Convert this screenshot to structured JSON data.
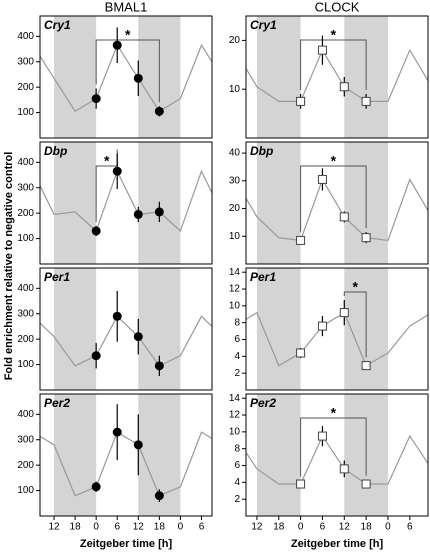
{
  "column_titles": [
    "BMAL1",
    "CLOCK"
  ],
  "y_label": "Fold enrichment relative to negative control",
  "x_labels": [
    "Zeitgeber time [h]",
    "Zeitgeber time [h]"
  ],
  "chart_data": [
    {
      "type": "line",
      "title": "Cry1",
      "column": 0,
      "row": 0,
      "xlim": [
        -16,
        33
      ],
      "ylim": [
        0,
        480
      ],
      "yticks": [
        100,
        200,
        300,
        400
      ],
      "shading": [
        [
          -12,
          0
        ],
        [
          12,
          24
        ]
      ],
      "line": {
        "color": "#999999",
        "x": [
          -18,
          -12,
          -6,
          0,
          6,
          12,
          18,
          24,
          30,
          36
        ],
        "values": [
          365,
          235,
          105,
          155,
          365,
          235,
          105,
          155,
          365,
          235
        ]
      },
      "points": {
        "marker": "circle",
        "x": [
          0,
          6,
          12,
          18
        ],
        "values": [
          155,
          365,
          235,
          105
        ],
        "errors": [
          40,
          70,
          70,
          20
        ]
      },
      "annotations": [
        {
          "text": "*",
          "x": [
            0,
            18
          ]
        }
      ]
    },
    {
      "type": "line",
      "title": "Dbp",
      "column": 0,
      "row": 1,
      "xlim": [
        -16,
        33
      ],
      "ylim": [
        0,
        480
      ],
      "yticks": [
        100,
        200,
        300,
        400
      ],
      "shading": [
        [
          -12,
          0
        ],
        [
          12,
          24
        ]
      ],
      "line": {
        "color": "#999999",
        "x": [
          -18,
          -12,
          -6,
          0,
          6,
          12,
          18,
          24,
          30,
          36
        ],
        "values": [
          365,
          195,
          205,
          130,
          365,
          195,
          205,
          130,
          365,
          195
        ]
      },
      "points": {
        "marker": "circle",
        "x": [
          0,
          6,
          12,
          18
        ],
        "values": [
          130,
          365,
          195,
          205
        ],
        "errors": [
          20,
          70,
          30,
          40
        ]
      },
      "annotations": [
        {
          "text": "*",
          "x": [
            0,
            6
          ]
        }
      ]
    },
    {
      "type": "line",
      "title": "Per1",
      "column": 0,
      "row": 2,
      "xlim": [
        -16,
        33
      ],
      "ylim": [
        0,
        480
      ],
      "yticks": [
        100,
        200,
        300,
        400
      ],
      "shading": [
        [
          -12,
          0
        ],
        [
          12,
          24
        ]
      ],
      "line": {
        "color": "#999999",
        "x": [
          -18,
          -12,
          -6,
          0,
          6,
          12,
          18,
          24,
          30,
          36
        ],
        "values": [
          290,
          210,
          95,
          135,
          290,
          210,
          95,
          135,
          290,
          210
        ]
      },
      "points": {
        "marker": "circle",
        "x": [
          0,
          6,
          12,
          18
        ],
        "values": [
          135,
          290,
          210,
          95
        ],
        "errors": [
          50,
          100,
          70,
          40
        ]
      }
    },
    {
      "type": "line",
      "title": "Per2",
      "column": 0,
      "row": 3,
      "xlim": [
        -16,
        33
      ],
      "ylim": [
        0,
        480
      ],
      "yticks": [
        100,
        200,
        300,
        400
      ],
      "xticks": [
        {
          "value": -12,
          "label": "12"
        },
        {
          "value": -6,
          "label": "18"
        },
        0,
        6,
        12,
        18,
        {
          "value": 24,
          "label": "0"
        },
        {
          "value": 30,
          "label": "6"
        }
      ],
      "shading": [
        [
          -12,
          0
        ],
        [
          12,
          24
        ]
      ],
      "line": {
        "color": "#999999",
        "x": [
          -18,
          -12,
          -6,
          0,
          6,
          12,
          18,
          24,
          30,
          36
        ],
        "values": [
          330,
          280,
          80,
          115,
          330,
          280,
          80,
          115,
          330,
          280
        ]
      },
      "points": {
        "marker": "circle",
        "x": [
          0,
          6,
          12,
          18
        ],
        "values": [
          115,
          330,
          280,
          80
        ],
        "errors": [
          20,
          110,
          120,
          25
        ]
      }
    },
    {
      "type": "line",
      "title": "Cry1",
      "column": 1,
      "row": 0,
      "xlim": [
        -15,
        35
      ],
      "ylim": [
        0,
        25
      ],
      "yticks": [
        10,
        20
      ],
      "shading": [
        [
          -12,
          0
        ],
        [
          12,
          24
        ]
      ],
      "line": {
        "color": "#999999",
        "x": [
          -18,
          -12,
          -6,
          0,
          6,
          12,
          18,
          24,
          30,
          36
        ],
        "values": [
          18,
          10.5,
          7.5,
          7.5,
          18,
          10.5,
          7.5,
          7.5,
          18,
          10.5
        ]
      },
      "points": {
        "marker": "square",
        "x": [
          0,
          6,
          12,
          18
        ],
        "values": [
          7.5,
          18,
          10.5,
          7.5
        ],
        "errors": [
          1.5,
          3,
          2,
          1.5
        ]
      },
      "annotations": [
        {
          "text": "*",
          "x": [
            0,
            18
          ]
        }
      ]
    },
    {
      "type": "line",
      "title": "Dbp",
      "column": 1,
      "row": 1,
      "xlim": [
        -15,
        35
      ],
      "ylim": [
        0,
        44
      ],
      "yticks": [
        10,
        20,
        30,
        40
      ],
      "shading": [
        [
          -12,
          0
        ],
        [
          12,
          24
        ]
      ],
      "line": {
        "color": "#999999",
        "x": [
          -18,
          -12,
          -6,
          0,
          6,
          12,
          18,
          24,
          30,
          36
        ],
        "values": [
          30.5,
          17,
          9.5,
          8.5,
          30.5,
          17,
          9.5,
          8.5,
          30.5,
          17
        ]
      },
      "points": {
        "marker": "square",
        "x": [
          0,
          6,
          12,
          18
        ],
        "values": [
          8.5,
          30.5,
          17,
          9.5
        ],
        "errors": [
          1.5,
          4,
          2,
          2
        ]
      },
      "annotations": [
        {
          "text": "*",
          "x": [
            0,
            18
          ]
        }
      ]
    },
    {
      "type": "line",
      "title": "Per1",
      "column": 1,
      "row": 2,
      "xlim": [
        -15,
        35
      ],
      "ylim": [
        0,
        14.5
      ],
      "yticks": [
        2,
        4,
        6,
        8,
        10,
        12,
        14
      ],
      "shading": [
        [
          -12,
          0
        ],
        [
          12,
          24
        ]
      ],
      "line": {
        "color": "#999999",
        "x": [
          -18,
          -12,
          -6,
          0,
          6,
          12,
          18,
          24,
          30,
          36
        ],
        "values": [
          7.6,
          9.2,
          2.9,
          4.4,
          7.6,
          9.2,
          2.9,
          4.4,
          7.6,
          9.2
        ]
      },
      "points": {
        "marker": "square",
        "x": [
          0,
          6,
          12,
          18
        ],
        "values": [
          4.4,
          7.6,
          9.2,
          2.9
        ],
        "errors": [
          0.6,
          1.2,
          1.5,
          0.5
        ]
      },
      "annotations": [
        {
          "text": "*",
          "x": [
            12,
            18
          ]
        }
      ]
    },
    {
      "type": "line",
      "title": "Per2",
      "column": 1,
      "row": 3,
      "xlim": [
        -15,
        35
      ],
      "ylim": [
        0,
        14.5
      ],
      "yticks": [
        2,
        4,
        6,
        8,
        10,
        12,
        14
      ],
      "xticks": [
        {
          "value": -12,
          "label": "12"
        },
        {
          "value": -6,
          "label": "18"
        },
        0,
        6,
        12,
        18,
        {
          "value": 24,
          "label": "0"
        },
        {
          "value": 30,
          "label": "6"
        }
      ],
      "shading": [
        [
          -12,
          0
        ],
        [
          12,
          24
        ]
      ],
      "line": {
        "color": "#999999",
        "x": [
          -18,
          -12,
          -6,
          0,
          6,
          12,
          18,
          24,
          30,
          36
        ],
        "values": [
          9.5,
          5.6,
          3.8,
          3.8,
          9.5,
          5.6,
          3.8,
          3.8,
          9.5,
          5.6
        ]
      },
      "points": {
        "marker": "square",
        "x": [
          0,
          6,
          12,
          18
        ],
        "values": [
          3.8,
          9.5,
          5.6,
          3.8
        ],
        "errors": [
          0.4,
          1.2,
          1,
          0.5
        ]
      },
      "annotations": [
        {
          "text": "*",
          "x": [
            0,
            18
          ]
        }
      ]
    }
  ]
}
